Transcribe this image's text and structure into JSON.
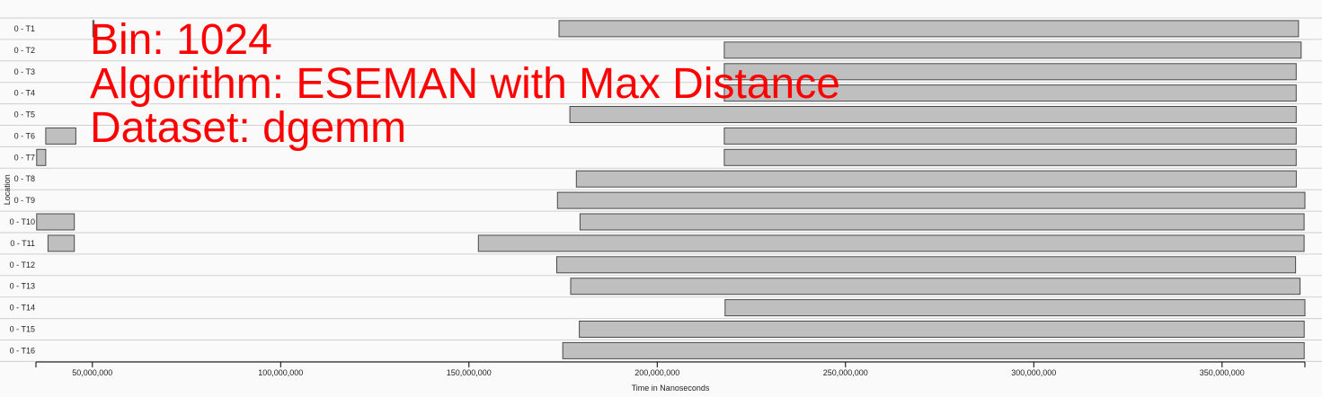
{
  "overlay": {
    "bin_line": "Bin: 1024",
    "algorithm_line": "Algorithm: ESEMAN with Max Distance",
    "dataset_line": "Dataset: dgemm"
  },
  "chart_data": {
    "type": "gantt",
    "xlabel": "Time in Nanoseconds",
    "ylabel": "Location",
    "xlim": [
      35000000,
      372000000
    ],
    "x_ticks": [
      50000000,
      100000000,
      150000000,
      200000000,
      250000000,
      300000000,
      350000000
    ],
    "x_tick_labels": [
      "50,000,000",
      "100,000,000",
      "150,000,000",
      "200,000,000",
      "250,000,000",
      "300,000,000",
      "350,000,000"
    ],
    "grid": "horizontal row separators",
    "colors": {
      "bar_fill": "#bfbfbf",
      "bar_stroke": "#4a4a4a",
      "overlay_text": "#ff0000"
    },
    "rows": [
      {
        "label": "0 - T1",
        "intervals": [
          [
            50100000,
            50400000
          ],
          [
            173900000,
            370300000
          ]
        ]
      },
      {
        "label": "0 - T2",
        "intervals": [
          [
            217800000,
            371000000
          ]
        ]
      },
      {
        "label": "0 - T3",
        "intervals": [
          [
            217800000,
            369700000
          ]
        ]
      },
      {
        "label": "0 - T4",
        "intervals": [
          [
            217800000,
            369700000
          ]
        ]
      },
      {
        "label": "0 - T5",
        "intervals": [
          [
            176800000,
            369700000
          ]
        ]
      },
      {
        "label": "0 - T6",
        "intervals": [
          [
            37600000,
            45600000
          ],
          [
            217800000,
            369700000
          ]
        ]
      },
      {
        "label": "0 - T7",
        "intervals": [
          [
            35200000,
            37600000
          ],
          [
            217800000,
            369700000
          ]
        ]
      },
      {
        "label": "0 - T8",
        "intervals": [
          [
            178500000,
            369700000
          ]
        ]
      },
      {
        "label": "0 - T9",
        "intervals": [
          [
            173500000,
            372000000
          ]
        ]
      },
      {
        "label": "0 - T10",
        "intervals": [
          [
            35200000,
            45200000
          ],
          [
            179500000,
            371800000
          ]
        ]
      },
      {
        "label": "0 - T11",
        "intervals": [
          [
            38200000,
            45200000
          ],
          [
            152500000,
            371800000
          ]
        ]
      },
      {
        "label": "0 - T12",
        "intervals": [
          [
            173300000,
            369500000
          ]
        ]
      },
      {
        "label": "0 - T13",
        "intervals": [
          [
            177000000,
            370700000
          ]
        ]
      },
      {
        "label": "0 - T14",
        "intervals": [
          [
            218000000,
            372000000
          ]
        ]
      },
      {
        "label": "0 - T15",
        "intervals": [
          [
            179300000,
            371800000
          ]
        ]
      },
      {
        "label": "0 - T16",
        "intervals": [
          [
            174900000,
            371800000
          ]
        ]
      }
    ]
  }
}
